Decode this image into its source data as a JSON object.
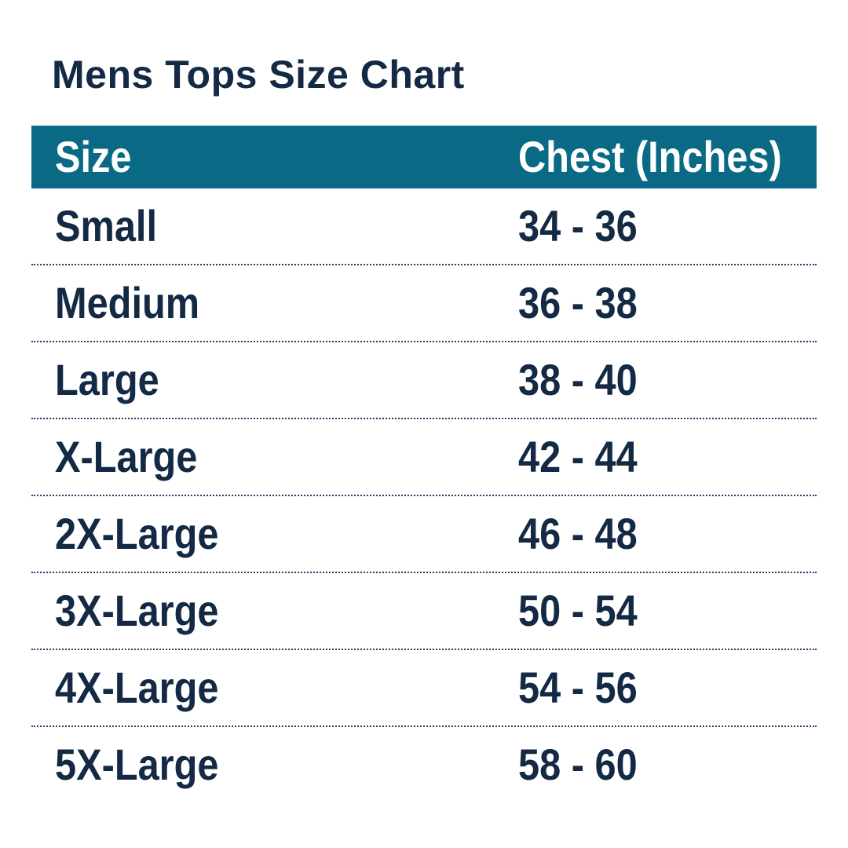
{
  "page": {
    "title": "Mens Tops Size Chart",
    "colors": {
      "background": "#ffffff",
      "navy_text": "#132944",
      "teal_header": "#0a6985",
      "header_text": "#ffffff",
      "dotted_divider": "#203f63"
    }
  },
  "table": {
    "headers": {
      "size": "Size",
      "chest": "Chest (Inches)"
    },
    "rows": [
      {
        "size": "Small",
        "chest": "34 - 36"
      },
      {
        "size": "Medium",
        "chest": "36 - 38"
      },
      {
        "size": "Large",
        "chest": "38 - 40"
      },
      {
        "size": "X-Large",
        "chest": "42 - 44"
      },
      {
        "size": "2X-Large",
        "chest": "46 - 48"
      },
      {
        "size": "3X-Large",
        "chest": "50 - 54"
      },
      {
        "size": "4X-Large",
        "chest": "54 - 56"
      },
      {
        "size": "5X-Large",
        "chest": "58 - 60"
      }
    ]
  },
  "chart_data": {
    "type": "table",
    "title": "Mens Tops Size Chart",
    "columns": [
      "Size",
      "Chest (Inches)"
    ],
    "rows": [
      [
        "Small",
        "34 - 36"
      ],
      [
        "Medium",
        "36 - 38"
      ],
      [
        "Large",
        "38 - 40"
      ],
      [
        "X-Large",
        "42 - 44"
      ],
      [
        "2X-Large",
        "46 - 48"
      ],
      [
        "3X-Large",
        "50 - 54"
      ],
      [
        "4X-Large",
        "54 - 56"
      ],
      [
        "5X-Large",
        "58 - 60"
      ]
    ],
    "chest_ranges_inches": [
      {
        "size": "Small",
        "min": 34,
        "max": 36
      },
      {
        "size": "Medium",
        "min": 36,
        "max": 38
      },
      {
        "size": "Large",
        "min": 38,
        "max": 40
      },
      {
        "size": "X-Large",
        "min": 42,
        "max": 44
      },
      {
        "size": "2X-Large",
        "min": 46,
        "max": 48
      },
      {
        "size": "3X-Large",
        "min": 50,
        "max": 54
      },
      {
        "size": "4X-Large",
        "min": 54,
        "max": 56
      },
      {
        "size": "5X-Large",
        "min": 58,
        "max": 60
      }
    ],
    "layout_hints": {
      "header_background": "#0a6985",
      "row_separator": "dotted",
      "value_column_alignment": "left"
    }
  }
}
